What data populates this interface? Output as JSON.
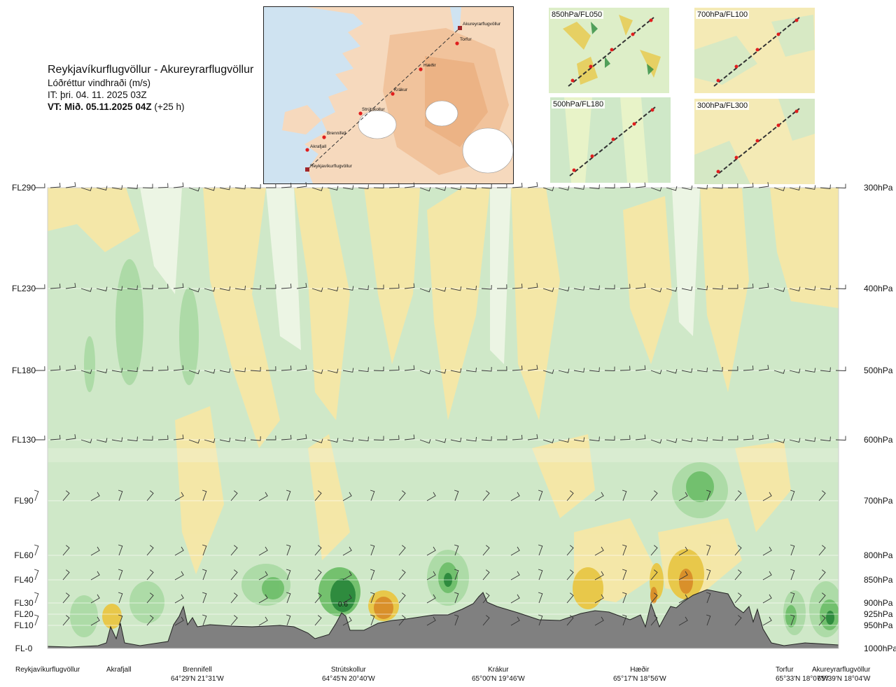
{
  "title": {
    "route": "Reykjavíkurflugvöllur - Akureyrarflugvöllur",
    "variable": "Lóðréttur vindhraði (m/s)",
    "issue": "IT: þri. 04. 11. 2025 03Z",
    "valid_bold": "VT: Mið. 05.11.2025 04Z",
    "valid_lead": "(+25 h)"
  },
  "map": {
    "points": [
      "Akureyrarflugvöllur",
      "Torfur",
      "Hæðir",
      "Krákur",
      "Strútskollur",
      "Brennifell",
      "Akrafjall",
      "Reykjavíkurflugvöllur"
    ]
  },
  "minimaps": [
    {
      "label": "850hPa/FL050"
    },
    {
      "label": "700hPa/FL100"
    },
    {
      "label": "500hPa/FL180"
    },
    {
      "label": "300hPa/FL300"
    }
  ],
  "chart_data": {
    "type": "heatmap",
    "xlabel": "",
    "ylabel": "",
    "left_axis": [
      "FL290",
      "FL230",
      "FL180",
      "FL130",
      "FL90",
      "FL60",
      "FL40",
      "FL30",
      "FL20",
      "FL10",
      "FL-0"
    ],
    "right_axis": [
      "300hPa",
      "400hPa",
      "500hPa",
      "600hPa",
      "700hPa",
      "800hPa",
      "850hPa",
      "900hPa",
      "925hPa",
      "950hPa",
      "1000hPa"
    ],
    "pressure_levels_hpa": [
      300,
      400,
      500,
      600,
      700,
      800,
      850,
      900,
      925,
      950,
      1000
    ],
    "annotation": "0.6",
    "stations": [
      {
        "name": "Reykjavíkurflugvöllur",
        "coord": ""
      },
      {
        "name": "Akrafjall",
        "coord": ""
      },
      {
        "name": "Brennifell",
        "coord": "64°29'N 21°31'W"
      },
      {
        "name": "Strútskollur",
        "coord": "64°45'N 20°40'W"
      },
      {
        "name": "Krákur",
        "coord": "65°00'N 19°46'W"
      },
      {
        "name": "Hæðir",
        "coord": "65°17'N 18°56'W"
      },
      {
        "name": "Torfur",
        "coord": "65°33'N 18°07'W"
      },
      {
        "name": "Akureyrarflugvöllur",
        "coord": "65°39'N 18°04'W"
      }
    ],
    "colors": {
      "strong_down": "#2e8b3e",
      "mod_down": "#6fbf6a",
      "weak_down": "#a9d9a3",
      "very_weak_down": "#cfe8c8",
      "neutral": "#f1f7e9",
      "weak_up": "#f6e7a6",
      "mod_up": "#e8c84a",
      "strong_up": "#d9902a",
      "terrain": "#808080"
    }
  }
}
